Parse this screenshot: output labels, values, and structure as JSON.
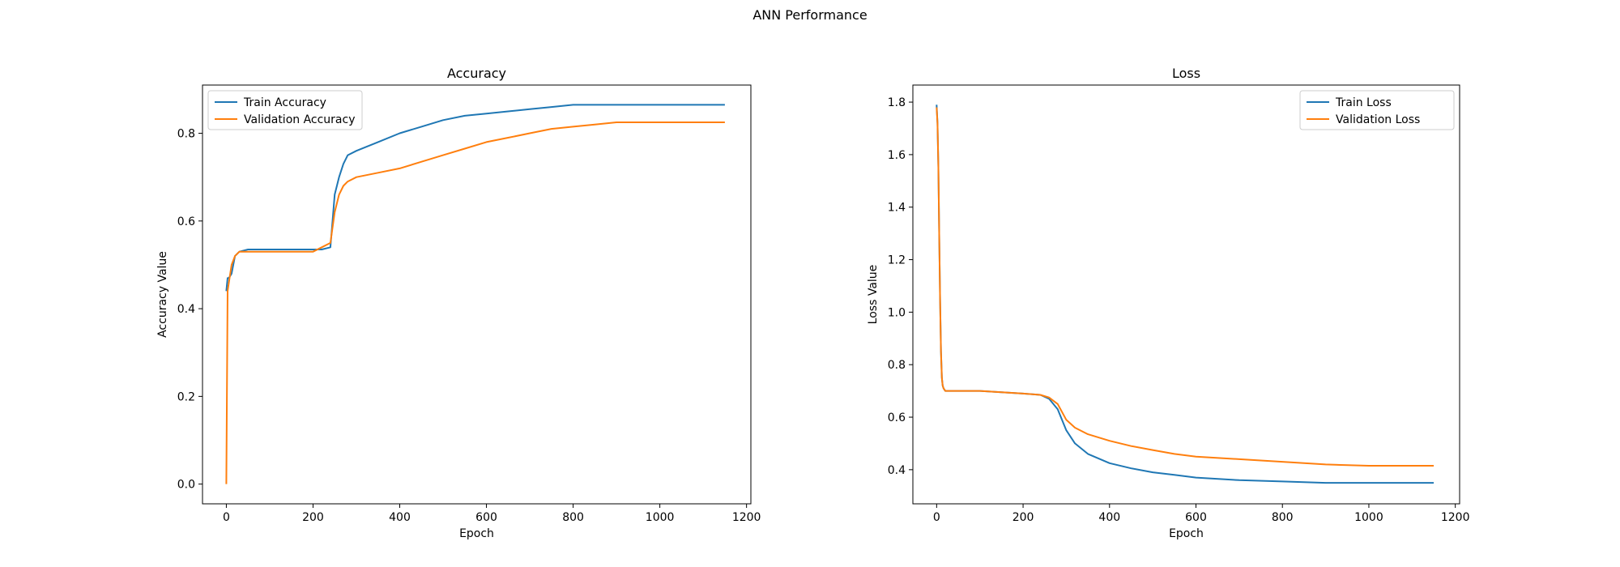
{
  "figure": {
    "title": "ANN Performance"
  },
  "colors": {
    "train": "#1f77b4",
    "validation": "#ff7f0e"
  },
  "chart_data": [
    {
      "type": "line",
      "title": "Accuracy",
      "xlabel": "Epoch",
      "ylabel": "Accuracy Value",
      "xlim": [
        -55,
        1210
      ],
      "ylim": [
        -0.045,
        0.91
      ],
      "xticks": [
        0,
        200,
        400,
        600,
        800,
        1000,
        1200
      ],
      "yticks": [
        0.0,
        0.2,
        0.4,
        0.6,
        0.8
      ],
      "ytick_labels": [
        "0.0",
        "0.2",
        "0.4",
        "0.6",
        "0.8"
      ],
      "legend_position": "upper left",
      "series": [
        {
          "name": "Train Accuracy",
          "color": "#1f77b4",
          "x": [
            0,
            3,
            6,
            12,
            20,
            30,
            50,
            100,
            150,
            200,
            220,
            240,
            250,
            260,
            270,
            280,
            300,
            350,
            400,
            450,
            500,
            550,
            600,
            650,
            700,
            750,
            800,
            850,
            900,
            950,
            1000,
            1050,
            1100,
            1150
          ],
          "values": [
            0.44,
            0.47,
            0.47,
            0.48,
            0.52,
            0.53,
            0.535,
            0.535,
            0.535,
            0.535,
            0.535,
            0.54,
            0.66,
            0.7,
            0.73,
            0.75,
            0.76,
            0.78,
            0.8,
            0.815,
            0.83,
            0.84,
            0.845,
            0.85,
            0.855,
            0.86,
            0.865,
            0.865,
            0.865,
            0.865,
            0.865,
            0.865,
            0.865,
            0.865
          ]
        },
        {
          "name": "Validation Accuracy",
          "color": "#ff7f0e",
          "x": [
            0,
            3,
            6,
            12,
            20,
            30,
            50,
            100,
            150,
            200,
            220,
            240,
            250,
            260,
            270,
            280,
            300,
            350,
            400,
            450,
            500,
            550,
            600,
            650,
            700,
            750,
            800,
            850,
            900,
            950,
            1000,
            1050,
            1100,
            1150
          ],
          "values": [
            0.0,
            0.44,
            0.46,
            0.5,
            0.52,
            0.53,
            0.53,
            0.53,
            0.53,
            0.53,
            0.54,
            0.55,
            0.62,
            0.66,
            0.68,
            0.69,
            0.7,
            0.71,
            0.72,
            0.735,
            0.75,
            0.765,
            0.78,
            0.79,
            0.8,
            0.81,
            0.815,
            0.82,
            0.825,
            0.825,
            0.825,
            0.825,
            0.825,
            0.825
          ]
        }
      ]
    },
    {
      "type": "line",
      "title": "Loss",
      "xlabel": "Epoch",
      "ylabel": "Loss Value",
      "xlim": [
        -55,
        1210
      ],
      "ylim": [
        0.27,
        1.865
      ],
      "xticks": [
        0,
        200,
        400,
        600,
        800,
        1000,
        1200
      ],
      "yticks": [
        0.4,
        0.6,
        0.8,
        1.0,
        1.2,
        1.4,
        1.6,
        1.8
      ],
      "ytick_labels": [
        "0.4",
        "0.6",
        "0.8",
        "1.0",
        "1.2",
        "1.4",
        "1.6",
        "1.8"
      ],
      "legend_position": "upper right",
      "series": [
        {
          "name": "Train Loss",
          "color": "#1f77b4",
          "x": [
            0,
            2,
            4,
            6,
            8,
            10,
            12,
            14,
            16,
            20,
            30,
            50,
            100,
            150,
            200,
            240,
            260,
            280,
            300,
            320,
            350,
            400,
            450,
            500,
            550,
            600,
            700,
            800,
            900,
            1000,
            1100,
            1150
          ],
          "values": [
            1.79,
            1.72,
            1.55,
            1.3,
            1.05,
            0.85,
            0.75,
            0.72,
            0.71,
            0.7,
            0.7,
            0.7,
            0.7,
            0.695,
            0.69,
            0.685,
            0.67,
            0.63,
            0.55,
            0.5,
            0.46,
            0.425,
            0.405,
            0.39,
            0.38,
            0.37,
            0.36,
            0.355,
            0.35,
            0.35,
            0.35,
            0.35
          ]
        },
        {
          "name": "Validation Loss",
          "color": "#ff7f0e",
          "x": [
            0,
            2,
            4,
            6,
            8,
            10,
            12,
            14,
            16,
            20,
            30,
            50,
            100,
            150,
            200,
            240,
            260,
            280,
            300,
            320,
            350,
            400,
            450,
            500,
            550,
            600,
            700,
            800,
            900,
            1000,
            1100,
            1150
          ],
          "values": [
            1.78,
            1.72,
            1.55,
            1.3,
            1.05,
            0.85,
            0.75,
            0.72,
            0.71,
            0.7,
            0.7,
            0.7,
            0.7,
            0.695,
            0.69,
            0.685,
            0.675,
            0.65,
            0.59,
            0.56,
            0.535,
            0.51,
            0.49,
            0.475,
            0.46,
            0.45,
            0.44,
            0.43,
            0.42,
            0.415,
            0.415,
            0.415
          ]
        }
      ]
    }
  ]
}
